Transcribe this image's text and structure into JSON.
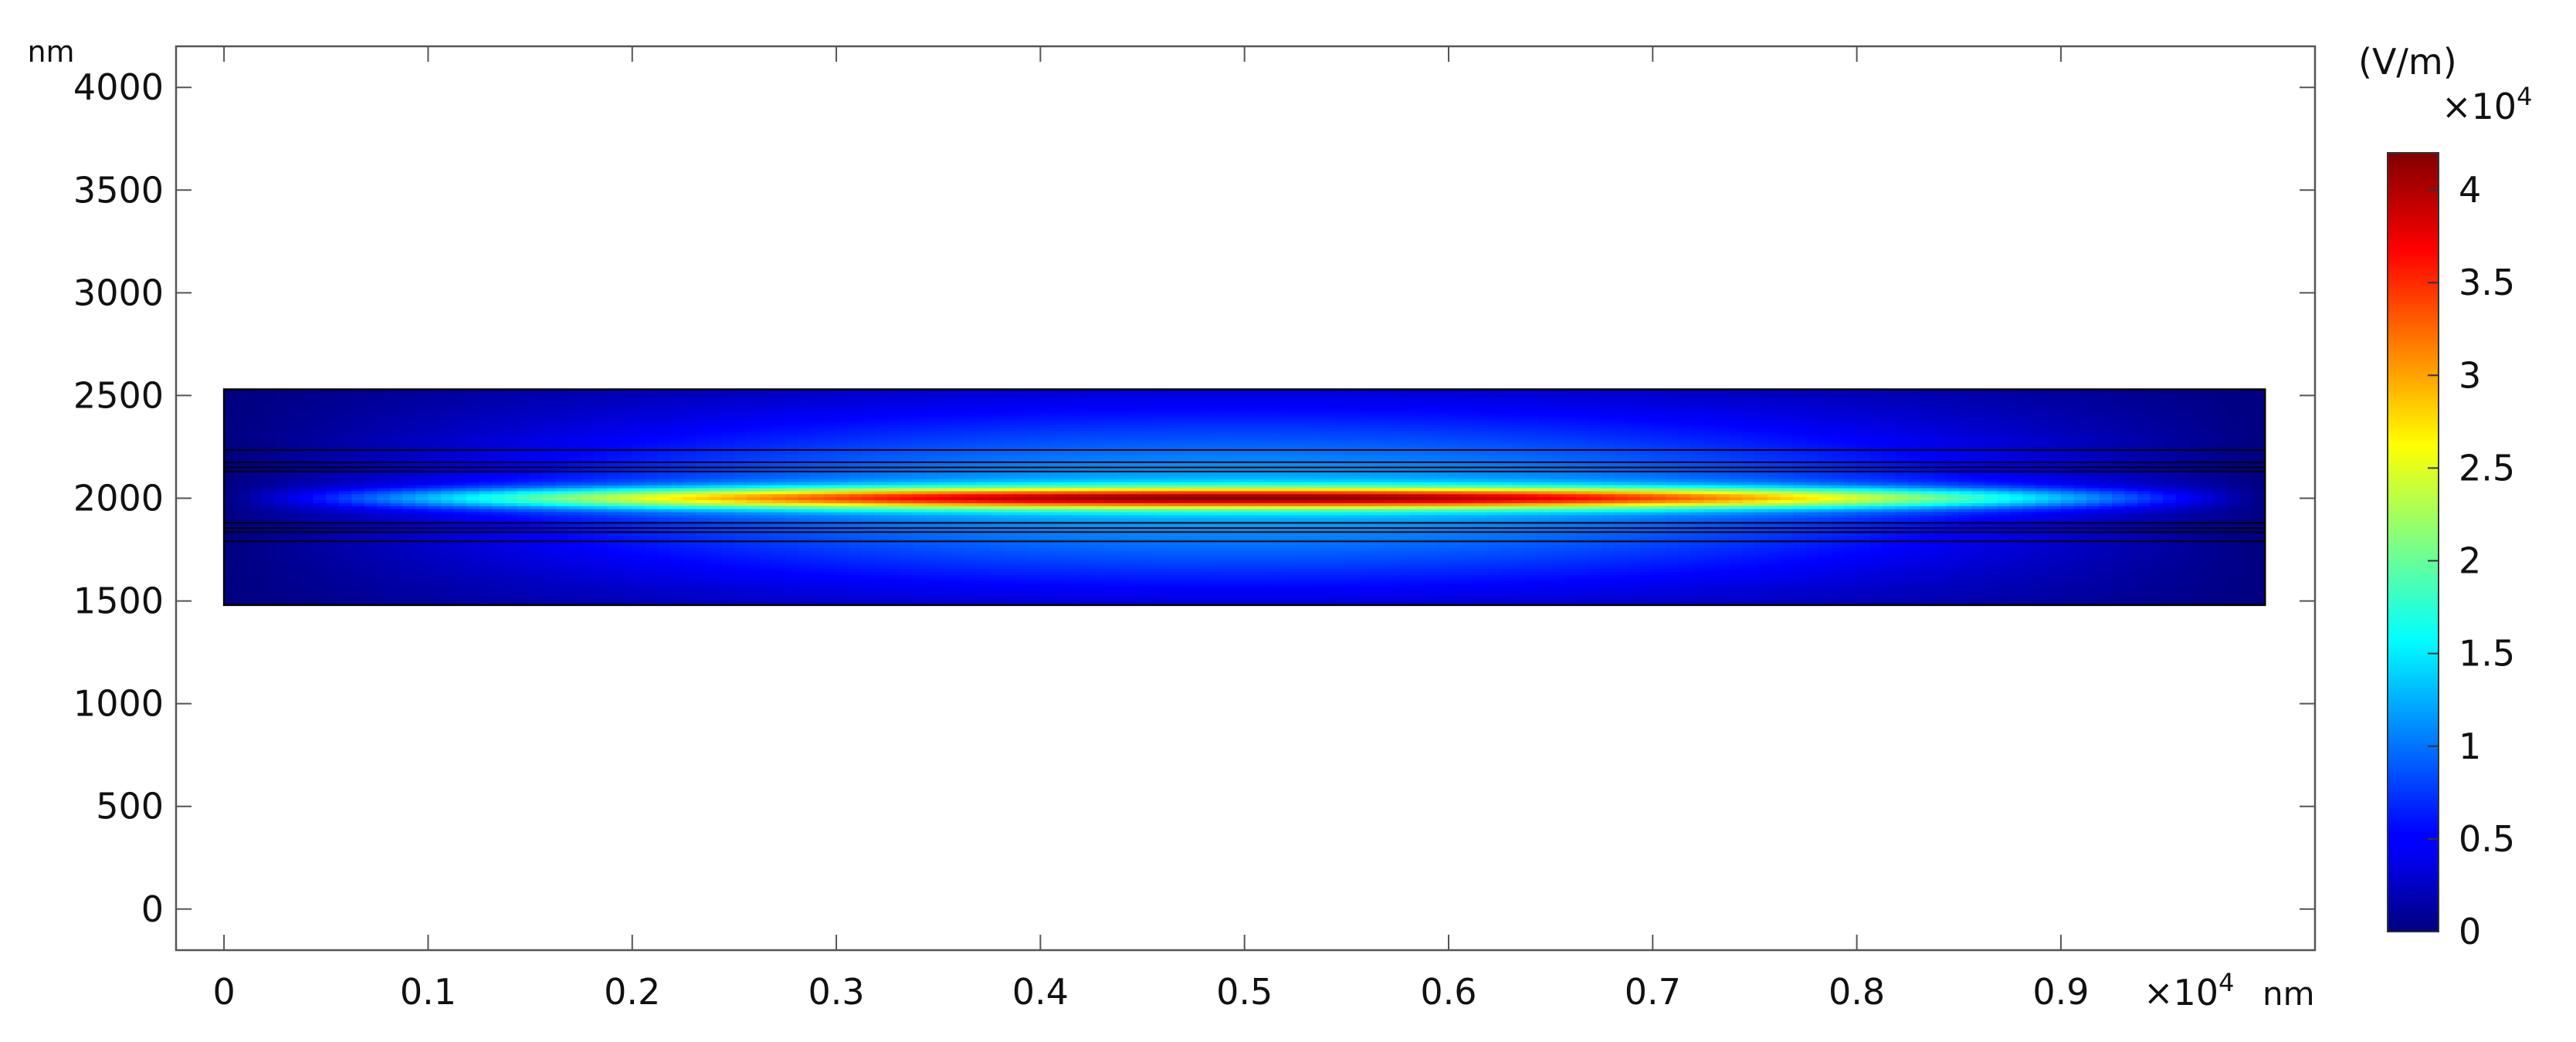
{
  "chart_data": {
    "type": "heatmap",
    "title": "",
    "x_unit": "nm",
    "y_unit": "nm",
    "x_multiplier": "×10",
    "x_multiplier_exp": "4",
    "xlim": [
      -0.0235,
      1.0245
    ],
    "ylim": [
      -200,
      4200
    ],
    "x_ticks": [
      0,
      0.1,
      0.2,
      0.3,
      0.4,
      0.5,
      0.6,
      0.7,
      0.8,
      0.9
    ],
    "x_tick_labels": [
      "0",
      "0.1",
      "0.2",
      "0.3",
      "0.4",
      "0.5",
      "0.6",
      "0.7",
      "0.8",
      "0.9"
    ],
    "y_ticks": [
      0,
      500,
      1000,
      1500,
      2000,
      2500,
      3000,
      3500,
      4000
    ],
    "y_tick_labels": [
      "0",
      "500",
      "1000",
      "1500",
      "2000",
      "2500",
      "3000",
      "3500",
      "4000"
    ],
    "domain": {
      "x": [
        0,
        1.0
      ],
      "y": [
        1480,
        2530
      ]
    },
    "layer_boundaries_y": [
      1790,
      1835,
      1855,
      1880,
      2130,
      2150,
      2175,
      2235
    ],
    "field_peak": {
      "x": 0.5,
      "y": 2000,
      "value": 4.2
    },
    "colorbar": {
      "unit": "(V/m)",
      "multiplier": "×10",
      "multiplier_exp": "4",
      "range": [
        0,
        4.2
      ],
      "ticks": [
        0,
        0.5,
        1,
        1.5,
        2,
        2.5,
        3,
        3.5,
        4
      ],
      "tick_labels": [
        "0",
        "0.5",
        "1",
        "1.5",
        "2",
        "2.5",
        "3",
        "3.5",
        "4"
      ],
      "colormap": "jet"
    },
    "grid": false,
    "colors": {
      "domain_edge": "#000000",
      "background": "#ffffff"
    }
  }
}
